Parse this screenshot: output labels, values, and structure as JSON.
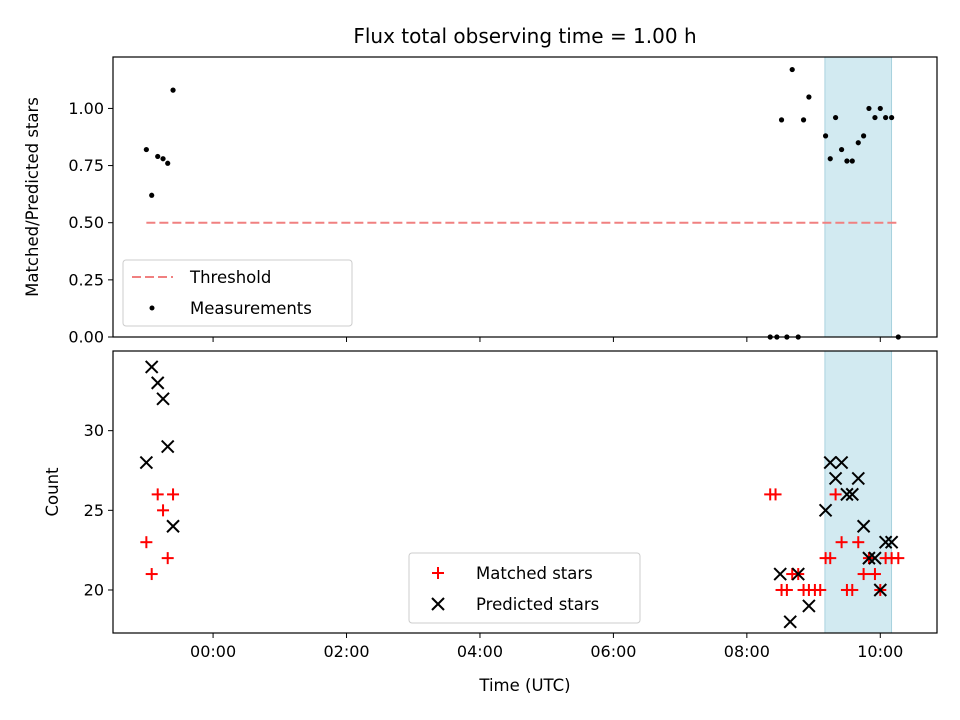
{
  "chart_data": [
    {
      "type": "scatter",
      "title": "Flux total observing time = 1.00 h",
      "xlabel": "",
      "ylabel": "Matched/Predicted stars",
      "xlim": [
        -1.5,
        10.85
      ],
      "ylim": [
        0.0,
        1.225
      ],
      "x_unit": "hours since 00:00 UTC (Time (UTC))",
      "yticks": [
        0.0,
        0.25,
        0.5,
        0.75,
        1.0
      ],
      "ytick_labels": [
        "0.00",
        "0.25",
        "0.50",
        "0.75",
        "1.00"
      ],
      "threshold": {
        "name": "Threshold",
        "value": 0.5,
        "x_start": -1.0,
        "x_end": 10.3,
        "color": "#f08080"
      },
      "highlight_span": [
        9.17,
        10.17
      ],
      "legend": {
        "placement": "lower-left",
        "entries": [
          "Threshold",
          "Measurements"
        ]
      },
      "series": [
        {
          "name": "Measurements",
          "color": "#000000",
          "marker": "dot",
          "x": [
            -1.0,
            -0.92,
            -0.83,
            -0.75,
            -0.68,
            -0.6,
            8.35,
            8.45,
            8.52,
            8.6,
            8.68,
            8.77,
            8.85,
            8.93,
            9.18,
            9.25,
            9.33,
            9.42,
            9.5,
            9.58,
            9.67,
            9.75,
            9.83,
            9.92,
            10.0,
            10.08,
            10.17,
            10.27
          ],
          "y": [
            0.82,
            0.62,
            0.79,
            0.78,
            0.76,
            1.08,
            0.0,
            0.0,
            0.95,
            0.0,
            1.17,
            0.0,
            0.95,
            1.05,
            0.88,
            0.78,
            0.96,
            0.82,
            0.77,
            0.77,
            0.85,
            0.88,
            1.0,
            0.96,
            1.0,
            0.96,
            0.96,
            0.0
          ]
        }
      ]
    },
    {
      "type": "scatter",
      "title": "",
      "xlabel": "Time (UTC)",
      "ylabel": "Count",
      "xlim": [
        -1.5,
        10.85
      ],
      "ylim": [
        17.3,
        35.0
      ],
      "x_unit": "hours since 00:00 UTC",
      "xticks": [
        0,
        2,
        4,
        6,
        8,
        10
      ],
      "xtick_labels": [
        "00:00",
        "02:00",
        "04:00",
        "06:00",
        "08:00",
        "10:00"
      ],
      "yticks": [
        20,
        25,
        30
      ],
      "ytick_labels": [
        "20",
        "25",
        "30"
      ],
      "highlight_span": [
        9.17,
        10.17
      ],
      "legend": {
        "placement": "lower-center",
        "entries": [
          "Matched stars",
          "Predicted stars"
        ]
      },
      "series": [
        {
          "name": "Matched stars",
          "color": "#ff0000",
          "marker": "plus",
          "x": [
            -1.0,
            -0.92,
            -0.83,
            -0.75,
            -0.68,
            -0.6,
            8.35,
            8.43,
            8.52,
            8.6,
            8.68,
            8.77,
            8.85,
            8.93,
            9.02,
            9.1,
            9.18,
            9.25,
            9.33,
            9.42,
            9.5,
            9.58,
            9.67,
            9.75,
            9.83,
            9.92,
            10.0,
            10.08,
            10.17,
            10.27
          ],
          "y": [
            23,
            21,
            26,
            25,
            22,
            26,
            26,
            26,
            20,
            20,
            21,
            21,
            20,
            20,
            20,
            20,
            22,
            22,
            26,
            23,
            20,
            20,
            23,
            21,
            22,
            21,
            20,
            22,
            22,
            22
          ]
        },
        {
          "name": "Predicted stars",
          "color": "#000000",
          "marker": "x",
          "x": [
            -1.0,
            -0.92,
            -0.83,
            -0.75,
            -0.68,
            -0.6,
            8.5,
            8.65,
            8.77,
            8.93,
            9.18,
            9.25,
            9.33,
            9.42,
            9.5,
            9.58,
            9.67,
            9.75,
            9.83,
            9.92,
            10.0,
            10.08,
            10.17
          ],
          "y": [
            28,
            34,
            33,
            32,
            29,
            24,
            21,
            18,
            21,
            19,
            25,
            28,
            27,
            28,
            26,
            26,
            27,
            24,
            22,
            22,
            20,
            23,
            23
          ]
        }
      ]
    }
  ]
}
